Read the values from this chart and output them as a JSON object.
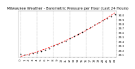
{
  "title": "Milwaukee Weather - Barometric Pressure per Hour (Last 24 Hours)",
  "background_color": "#ffffff",
  "grid_color": "#aaaaaa",
  "dot_color": "#000000",
  "trend_color": "#ff0000",
  "hours": [
    0,
    1,
    2,
    3,
    4,
    5,
    6,
    7,
    8,
    9,
    10,
    11,
    12,
    13,
    14,
    15,
    16,
    17,
    18,
    19,
    20,
    21,
    22,
    23
  ],
  "pressure": [
    29.12,
    29.1,
    29.11,
    29.13,
    29.15,
    29.18,
    29.22,
    29.25,
    29.3,
    29.34,
    29.38,
    29.42,
    29.47,
    29.52,
    29.57,
    29.62,
    29.67,
    29.72,
    29.78,
    29.83,
    29.88,
    29.93,
    29.97,
    30.02
  ],
  "ylim_min": 29.05,
  "ylim_max": 30.1,
  "ytick_values": [
    29.1,
    29.2,
    29.3,
    29.4,
    29.5,
    29.6,
    29.7,
    29.8,
    29.9,
    30.0
  ],
  "title_fontsize": 3.8,
  "tick_fontsize": 3.0,
  "dot_size": 1.5,
  "trend_linewidth": 0.6,
  "grid_linewidth": 0.3,
  "num_gridlines": 6
}
